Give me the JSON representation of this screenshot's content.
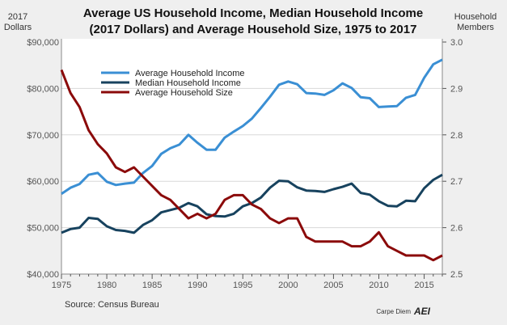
{
  "chart_data": {
    "type": "line",
    "title": "Average US Household Income, Median Household Income",
    "subtitle": "(2017 Dollars) and Average Household Size, 1975 to 2017",
    "ylabel_left": [
      "2017",
      "Dollars"
    ],
    "ylabel_right": [
      "Household",
      "Members"
    ],
    "source": "Source: Census Bureau",
    "credit": "Carpe Diem",
    "logo": "AEI",
    "xlim": [
      1975,
      2017
    ],
    "ylim_left": [
      40000,
      90000
    ],
    "ylim_right": [
      2.5,
      3.0
    ],
    "x_ticks": [
      "1975",
      "1980",
      "1985",
      "1990",
      "1995",
      "2000",
      "2005",
      "2010",
      "2015"
    ],
    "y_left_ticks": [
      "$40,000",
      "$50,000",
      "$60,000",
      "$70,000",
      "$80,000",
      "$90,000"
    ],
    "y_right_ticks": [
      "2.5",
      "2.6",
      "2.7",
      "2.8",
      "2.9",
      "3.0"
    ],
    "grid": true,
    "legend": "top-left",
    "x": [
      1975,
      1976,
      1977,
      1978,
      1979,
      1980,
      1981,
      1982,
      1983,
      1984,
      1985,
      1986,
      1987,
      1988,
      1989,
      1990,
      1991,
      1992,
      1993,
      1994,
      1995,
      1996,
      1997,
      1998,
      1999,
      2000,
      2001,
      2002,
      2003,
      2004,
      2005,
      2006,
      2007,
      2008,
      2009,
      2010,
      2011,
      2012,
      2013,
      2014,
      2015,
      2016,
      2017
    ],
    "series": [
      {
        "name": "Average Household Income",
        "axis": "left",
        "color": "#3a8fd4",
        "values": [
          57300,
          58600,
          59400,
          61400,
          61800,
          59900,
          59200,
          59500,
          59700,
          61800,
          63300,
          65900,
          67100,
          67900,
          70000,
          68300,
          66800,
          66800,
          69400,
          70700,
          71900,
          73500,
          75800,
          78200,
          80800,
          81500,
          80900,
          79000,
          78900,
          78600,
          79600,
          81100,
          80100,
          78100,
          77900,
          76000,
          76100,
          76200,
          78000,
          78600,
          82300,
          85200,
          86200
        ]
      },
      {
        "name": "Median Household Income",
        "axis": "left",
        "color": "#17425e",
        "values": [
          48900,
          49700,
          50000,
          52100,
          51900,
          50300,
          49500,
          49300,
          48900,
          50600,
          51600,
          53300,
          53800,
          54300,
          55300,
          54600,
          52900,
          52500,
          52400,
          53000,
          54600,
          55300,
          56500,
          58600,
          60100,
          60000,
          58700,
          58000,
          57900,
          57700,
          58300,
          58800,
          59500,
          57500,
          57100,
          55700,
          54700,
          54600,
          55800,
          55700,
          58500,
          60300,
          61400
        ]
      },
      {
        "name": "Average Household Size",
        "axis": "right",
        "color": "#8b0a0a",
        "values": [
          2.94,
          2.89,
          2.86,
          2.81,
          2.78,
          2.76,
          2.73,
          2.72,
          2.73,
          2.71,
          2.69,
          2.67,
          2.66,
          2.64,
          2.62,
          2.63,
          2.62,
          2.63,
          2.66,
          2.67,
          2.67,
          2.65,
          2.64,
          2.62,
          2.61,
          2.62,
          2.62,
          2.58,
          2.57,
          2.57,
          2.57,
          2.57,
          2.56,
          2.56,
          2.57,
          2.59,
          2.56,
          2.55,
          2.54,
          2.54,
          2.54,
          2.53,
          2.54
        ]
      }
    ]
  }
}
